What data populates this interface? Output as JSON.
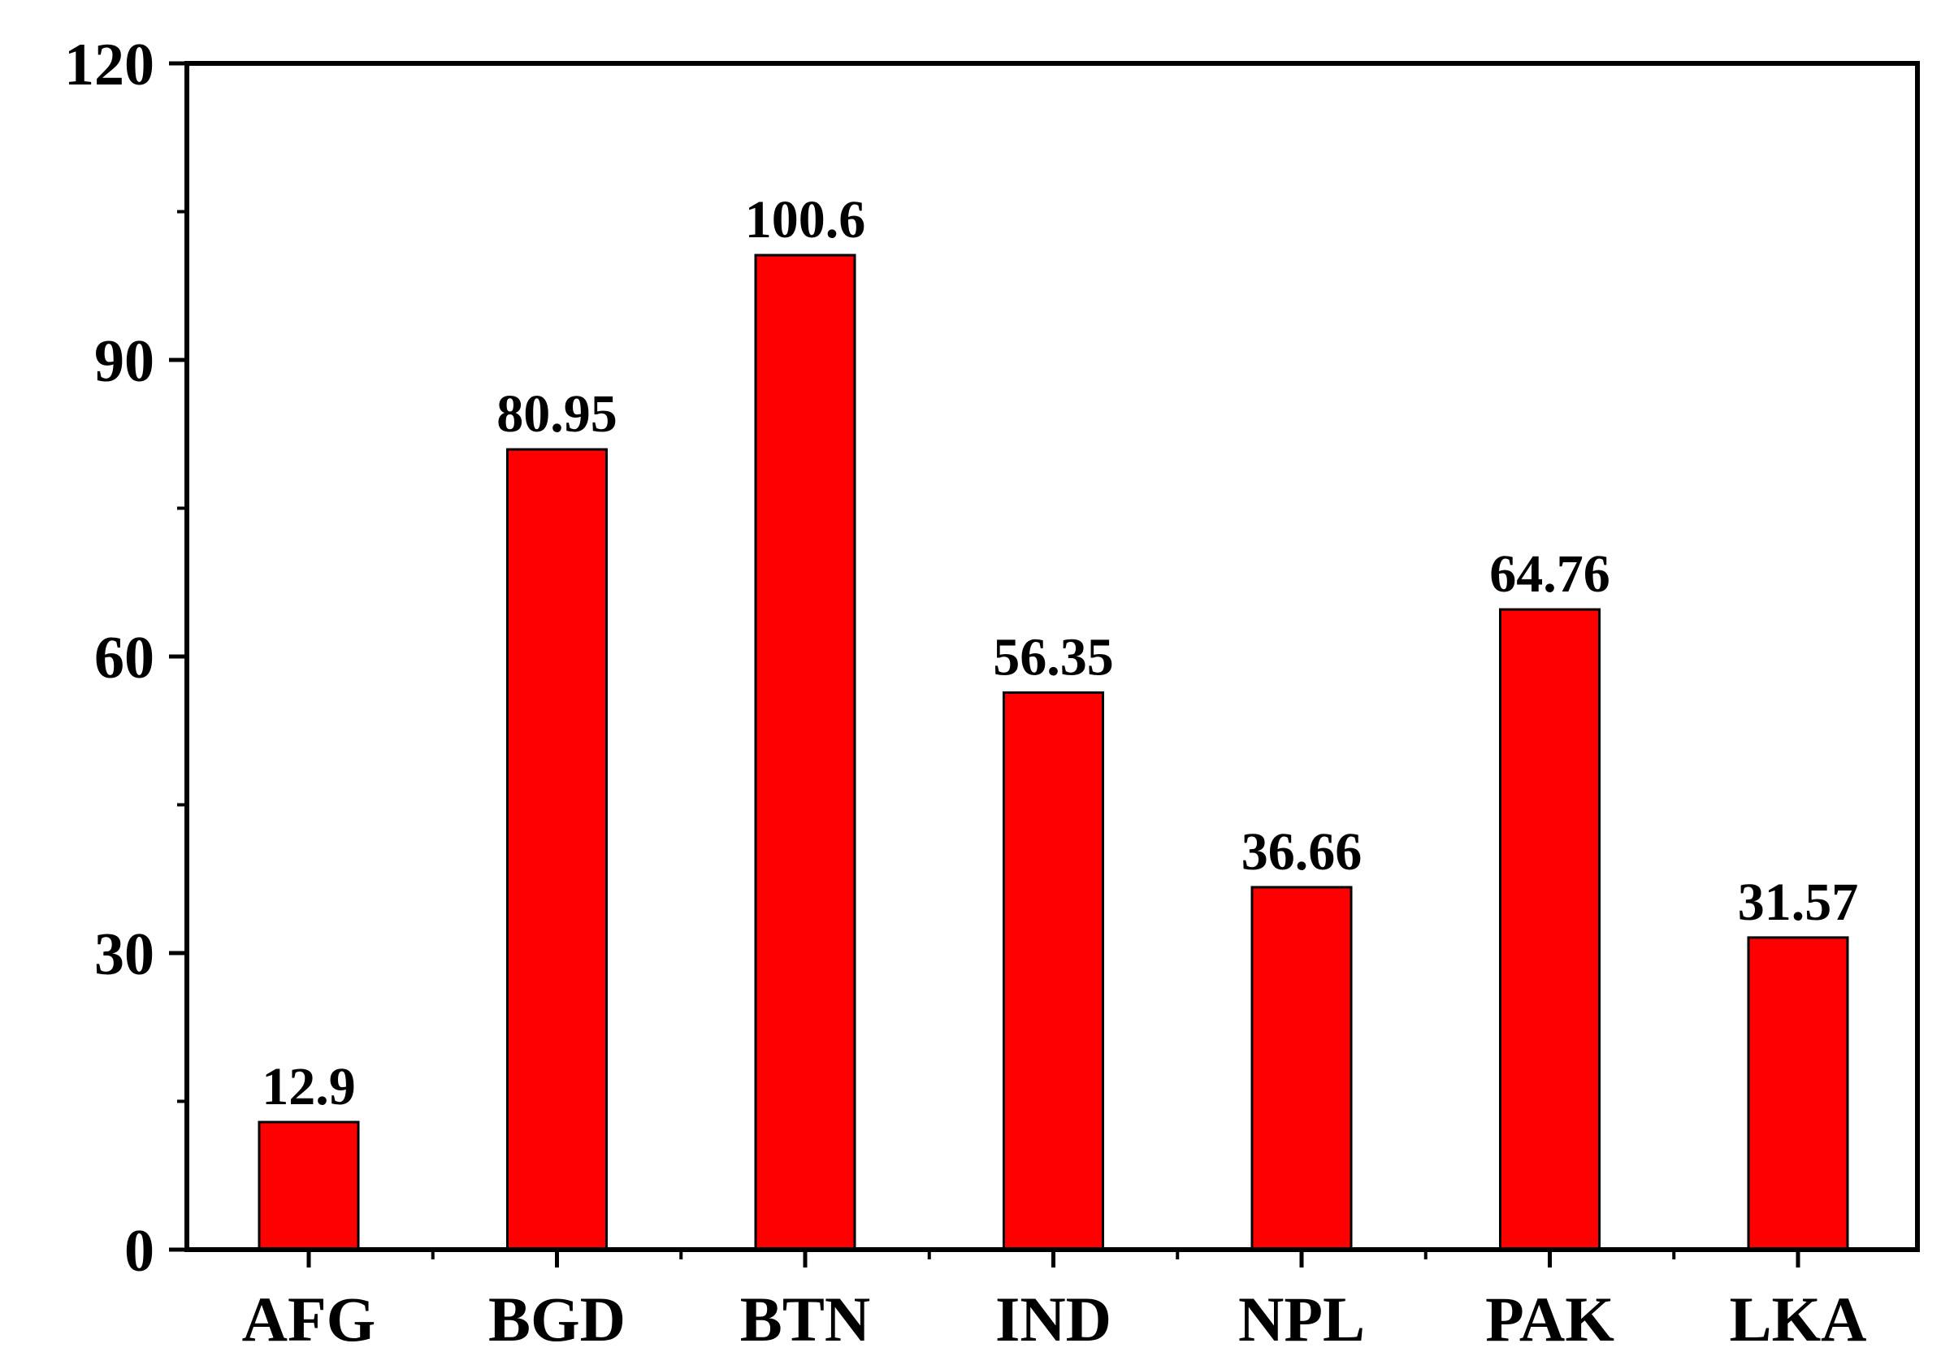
{
  "chart_data": {
    "type": "bar",
    "categories": [
      "AFG",
      "BGD",
      "BTN",
      "IND",
      "NPL",
      "PAK",
      "LKA"
    ],
    "values": [
      12.9,
      80.95,
      100.6,
      56.35,
      36.66,
      64.76,
      31.57
    ],
    "data_labels": [
      "12.9",
      "80.95",
      "100.6",
      "56.35",
      "36.66",
      "64.76",
      "31.57"
    ],
    "ylim": [
      0,
      120
    ],
    "yticks": [
      0,
      30,
      60,
      90,
      120
    ],
    "ytick_labels": [
      "0",
      "30",
      "60",
      "90",
      "120"
    ],
    "grid": false,
    "legend": "none",
    "bar_color": "#ff0000",
    "bar_edge_color": "#000000",
    "axis_color": "#000000"
  }
}
